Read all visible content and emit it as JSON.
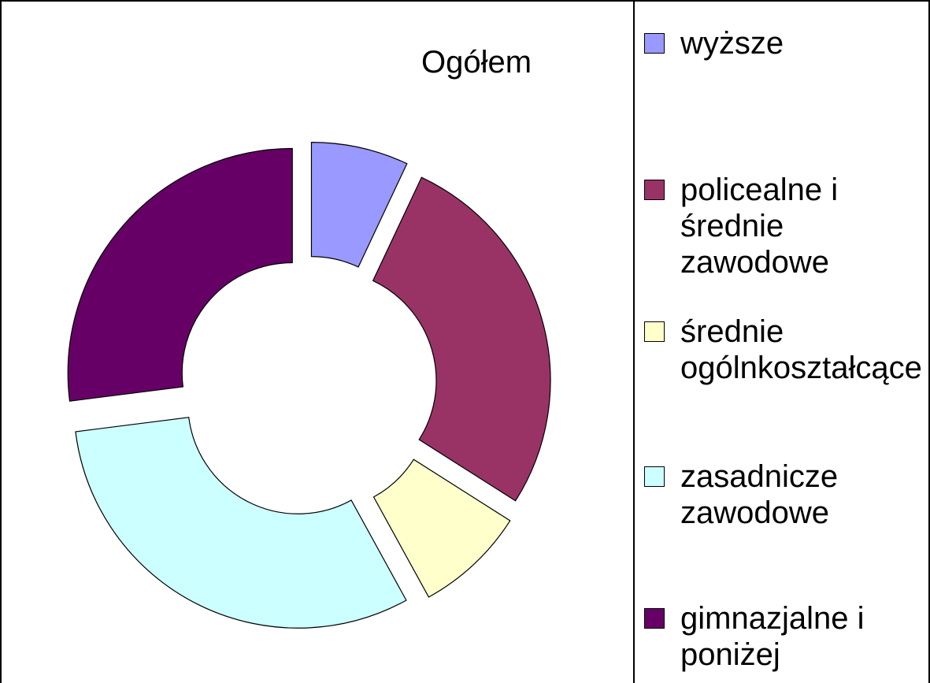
{
  "chart_data": {
    "type": "donut",
    "title": "Ogółem",
    "categories": [
      "wyższe",
      "policealne i średnie zawodowe",
      "średnie ogólnkoształcące",
      "zasadnicze zawodowe",
      "gimnazjalne i poniżej"
    ],
    "values": [
      7,
      27,
      8,
      31,
      27
    ],
    "colors": [
      "#9999ff",
      "#993366",
      "#ffffcc",
      "#ccffff",
      "#660066"
    ],
    "legend": "right"
  }
}
